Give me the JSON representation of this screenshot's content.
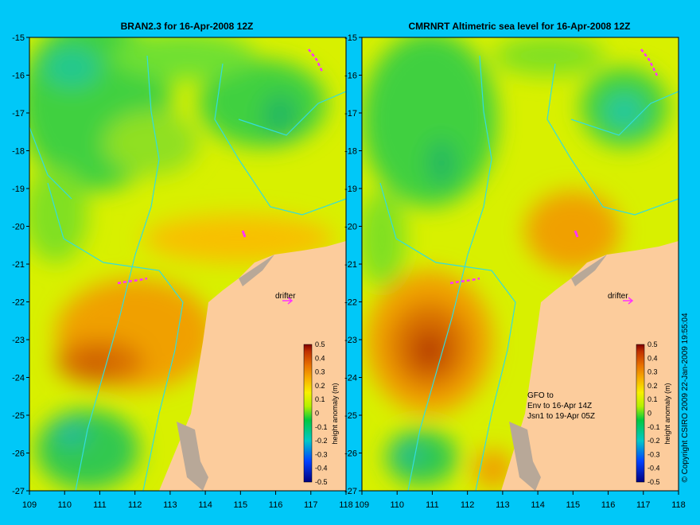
{
  "background_color": "#00c8f8",
  "land_color": "#fccc9c",
  "drifter_color": "#ff33ff",
  "contour_color": "#33dddd",
  "panels": [
    {
      "title": "BRAN2.3 for 16-Apr-2008 12Z",
      "drifter_label": "drifter",
      "colorbar_label": "height anomaly (m)",
      "notes": []
    },
    {
      "title": "CMRNRT Altimetric sea level  for 16-Apr-2008 12Z",
      "drifter_label": "drifter",
      "colorbar_label": "height anomaly (m)",
      "notes": [
        "GFO to",
        "Env to 16-Apr 14Z",
        "Jsn1 to 19-Apr 05Z"
      ]
    }
  ],
  "lat_ticks": [
    "-15",
    "-16",
    "-17",
    "-18",
    "-19",
    "-20",
    "-21",
    "-22",
    "-23",
    "-24",
    "-25",
    "-26",
    "-27"
  ],
  "lon_ticks": [
    "109",
    "110",
    "111",
    "112",
    "113",
    "114",
    "115",
    "116",
    "117",
    "118"
  ],
  "colorbar_ticks": [
    "0.5",
    "0.4",
    "0.3",
    "0.2",
    "0.1",
    "0",
    "-0.1",
    "-0.2",
    "-0.3",
    "-0.4",
    "-0.5"
  ],
  "copyright": "© Copyright CSIRO 2009   22-Jan-2009 19:55:04"
}
